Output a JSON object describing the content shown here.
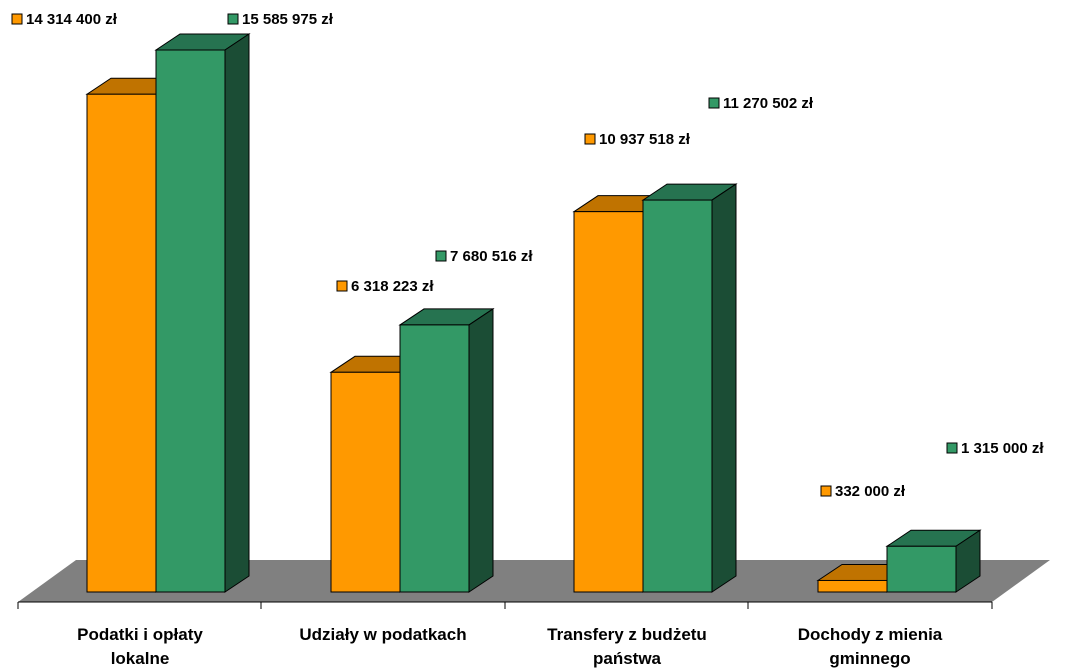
{
  "chart_data": {
    "type": "bar",
    "title": "",
    "xlabel": "",
    "ylabel": "",
    "ylim": [
      0,
      16500000
    ],
    "grid": false,
    "legend": "none",
    "categories": [
      [
        "Podatki i opłaty",
        "lokalne"
      ],
      [
        "Udziały w podatkach"
      ],
      [
        "Transfery z budżetu",
        "państwa"
      ],
      [
        "Dochody z mienia",
        "gminnego"
      ]
    ],
    "series": [
      {
        "color": "#FF9900",
        "values": [
          14314400,
          6318223,
          10937518,
          332000
        ],
        "labels": [
          "14 314 400 zł",
          "6 318 223 zł",
          "10 937 518 zł",
          "332 000 zł"
        ]
      },
      {
        "color": "#339966",
        "values": [
          15585975,
          7680516,
          11270502,
          1315000
        ],
        "labels": [
          "15 585 975 zł",
          "7 680 516 zł",
          "11 270 502 zł",
          "1 315 000 zł"
        ]
      }
    ],
    "colors": {
      "floor": "#808080",
      "series1_top": "#C07300",
      "series1_side": "#8F5600",
      "series2_top": "#267350",
      "series2_side": "#1B4D35"
    }
  }
}
